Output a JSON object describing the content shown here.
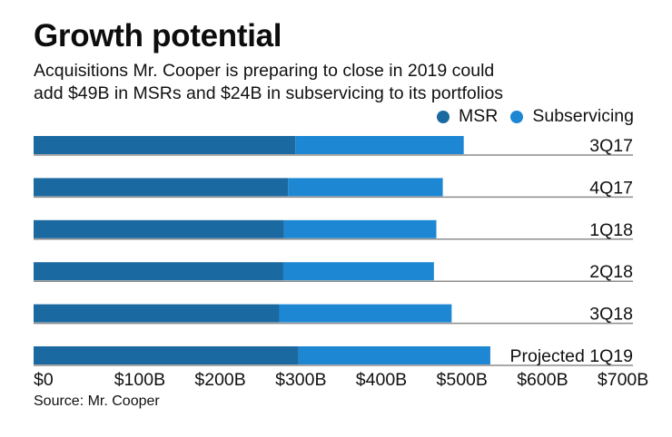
{
  "chart_data": {
    "type": "bar",
    "orientation": "horizontal",
    "stacked": true,
    "title": "Growth potential",
    "subtitle": "Acquisitions Mr. Cooper is preparing to close in 2019 could add $49B in MSRs and $24B in subservicing to its portfolios",
    "categories": [
      "3Q17",
      "4Q17",
      "1Q18",
      "2Q18",
      "3Q18",
      "Projected 1Q19"
    ],
    "series": [
      {
        "name": "MSR",
        "color": "#1b69a1",
        "values": [
          325,
          316,
          311,
          310,
          305,
          329
        ]
      },
      {
        "name": "Subservicing",
        "color": "#1d87d3",
        "values": [
          209,
          192,
          189,
          187,
          214,
          238
        ]
      }
    ],
    "xlabel": "",
    "ylabel": "",
    "xlim": [
      0,
      700
    ],
    "xticks": [
      0,
      100,
      200,
      300,
      400,
      500,
      600,
      700
    ],
    "xtick_labels": [
      "$0",
      "$100B",
      "$200B",
      "$300B",
      "$400B",
      "$500B",
      "$600B",
      "$700B"
    ],
    "legend_position": "top-right",
    "grid": false,
    "source": "Source: Mr. Cooper"
  },
  "header": {
    "title": "Growth potential",
    "subtitle_line1": "Acquisitions Mr. Cooper is preparing to close in 2019 could",
    "subtitle_line2": "add $49B in MSRs and $24B in subservicing to its portfolios"
  },
  "legend": {
    "items": [
      {
        "label": "MSR",
        "color": "#1b69a1"
      },
      {
        "label": "Subservicing",
        "color": "#1d87d3"
      }
    ]
  },
  "footer": {
    "source": "Source: Mr. Cooper"
  }
}
